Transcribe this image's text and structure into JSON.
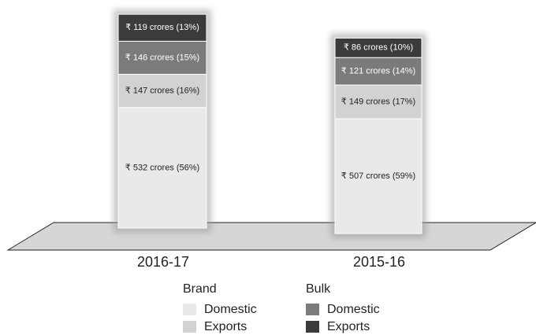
{
  "chart_data": {
    "type": "stacked_bar",
    "categories": [
      "2016-17",
      "2015-16"
    ],
    "series": [
      {
        "name": "Domestic",
        "group": "Brand",
        "color": "#e9e9e9",
        "values": [
          532,
          507
        ],
        "value_labels": [
          "₹ 532 crores (56%)",
          "₹ 507 crores (59%)"
        ]
      },
      {
        "name": "Exports",
        "group": "Brand",
        "color": "#d2d2d2",
        "values": [
          147,
          149
        ],
        "value_labels": [
          "₹ 147 crores (16%)",
          "₹ 149 crores (17%)"
        ]
      },
      {
        "name": "Domestic",
        "group": "Bulk",
        "color": "#7b7b7b",
        "values": [
          146,
          121
        ],
        "value_labels": [
          "₹ 146 crores (15%)",
          "₹ 121 crores (14%)"
        ]
      },
      {
        "name": "Exports",
        "group": "Bulk",
        "color": "#3b3b3b",
        "values": [
          119,
          86
        ],
        "value_labels": [
          "₹ 119 crores (13%)",
          "₹ 86 crores (10%)"
        ]
      }
    ]
  }
}
